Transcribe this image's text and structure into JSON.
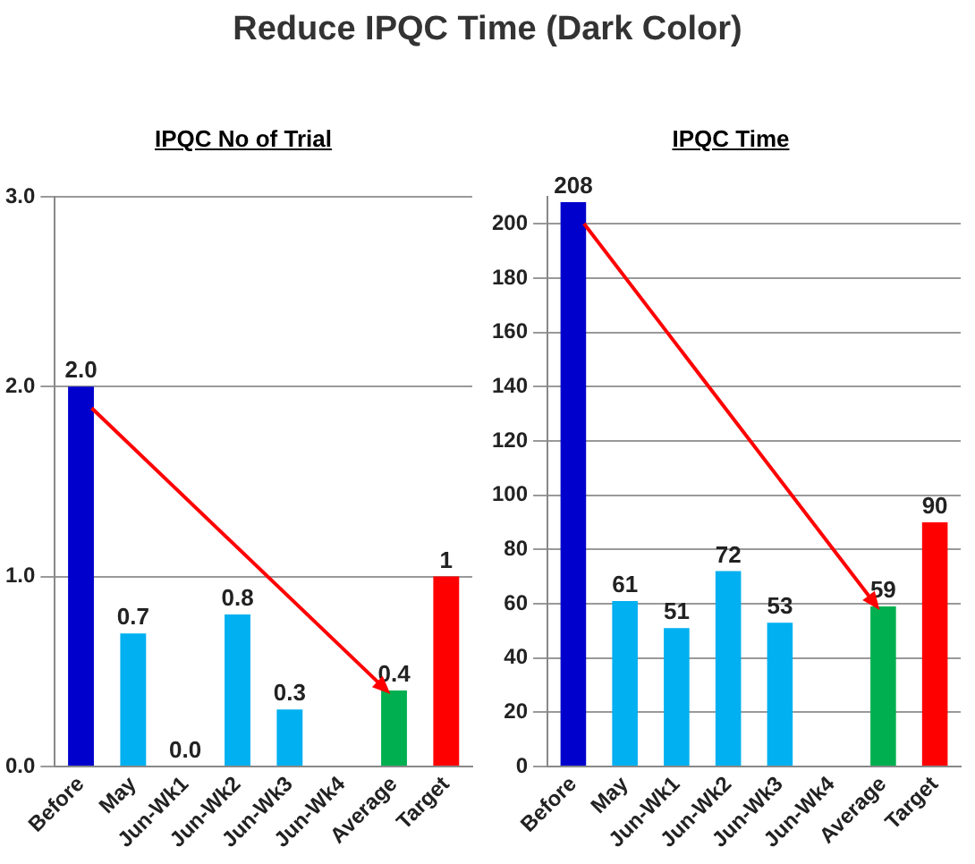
{
  "chart_data": [
    {
      "type": "bar",
      "title": "IPQC No of Trial",
      "annotations": [
        "Reduce IPQC Time (Dark Color)"
      ],
      "categories": [
        "Before",
        "May",
        "Jun-Wk1",
        "Jun-Wk2",
        "Jun-Wk3",
        "Jun-Wk4",
        "Average",
        "Target"
      ],
      "values": [
        2.0,
        0.7,
        0.0,
        0.8,
        0.3,
        null,
        0.4,
        1
      ],
      "value_labels": [
        "2.0",
        "0.7",
        "0.0",
        "0.8",
        "0.3",
        null,
        "0.4",
        "1"
      ],
      "colors": [
        "#0000cc",
        "#00b0f0",
        "#00b0f0",
        "#00b0f0",
        "#00b0f0",
        "#00b0f0",
        "#00b050",
        "#ff0000"
      ],
      "ylim": [
        0,
        3
      ],
      "yticks": [
        {
          "value": 0,
          "label": "0.0"
        },
        {
          "value": 1,
          "label": "1.0"
        },
        {
          "value": 2,
          "label": "2.0"
        },
        {
          "value": 3,
          "label": "3.0"
        }
      ],
      "grid": "y"
    },
    {
      "type": "bar",
      "title": "IPQC Time",
      "categories": [
        "Before",
        "May",
        "Jun-Wk1",
        "Jun-Wk2",
        "Jun-Wk3",
        "Jun-Wk4",
        "Average",
        "Target"
      ],
      "values": [
        208,
        61,
        51,
        72,
        53,
        null,
        59,
        90
      ],
      "data_labels": true,
      "colors": [
        "#0000cc",
        "#00b0f0",
        "#00b0f0",
        "#00b0f0",
        "#00b0f0",
        "#00b0f0",
        "#00b050",
        "#ff0000"
      ],
      "ylim": [
        0,
        210
      ],
      "yticks": [
        0,
        20,
        40,
        60,
        80,
        100,
        120,
        140,
        160,
        180,
        200
      ],
      "grid": "y"
    }
  ]
}
